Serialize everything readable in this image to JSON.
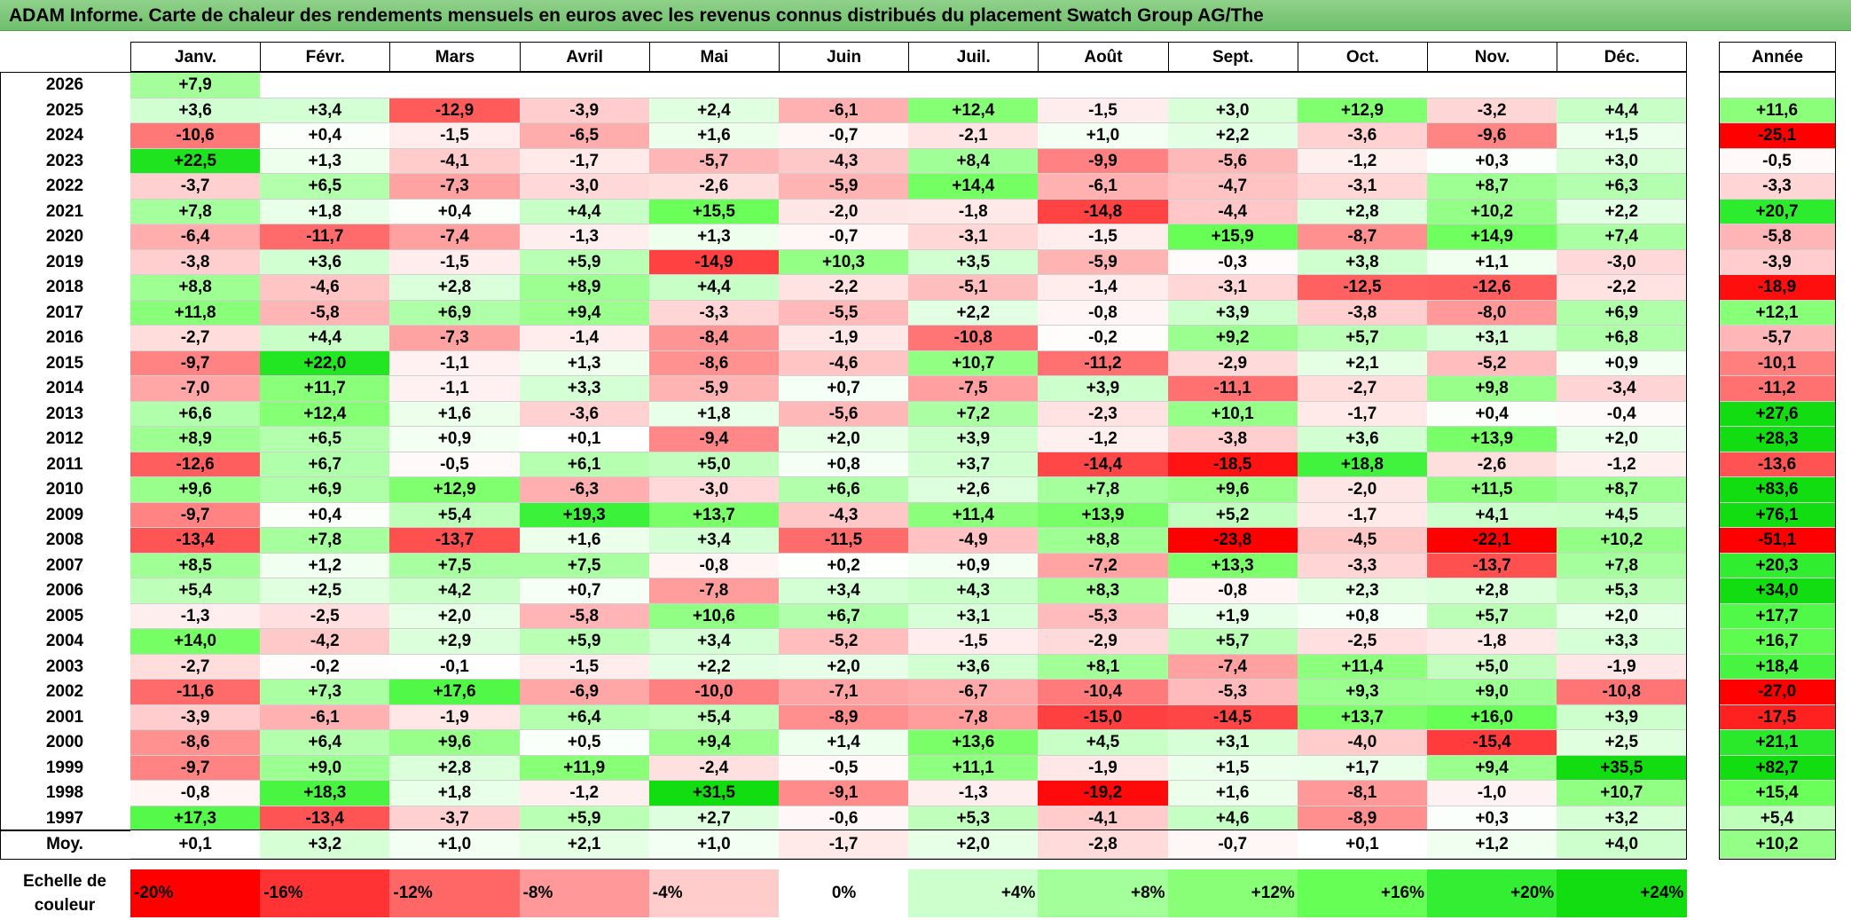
{
  "title": "ADAM Informe. Carte de chaleur des rendements mensuels en euros avec les revenus connus distribués du placement Swatch Group AG/The",
  "chart_data": {
    "type": "heatmap",
    "months": [
      "Janv.",
      "Févr.",
      "Mars",
      "Avril",
      "Mai",
      "Juin",
      "Juil.",
      "Août",
      "Sept.",
      "Oct.",
      "Nov.",
      "Déc."
    ],
    "year_header": "Année",
    "rows": [
      {
        "year": "2026",
        "months": [
          "+7,9",
          "",
          "",
          "",
          "",
          "",
          "",
          "",
          "",
          "",
          "",
          ""
        ],
        "annual": ""
      },
      {
        "year": "2025",
        "months": [
          "+3,6",
          "+3,4",
          "-12,9",
          "-3,9",
          "+2,4",
          "-6,1",
          "+12,4",
          "-1,5",
          "+3,0",
          "+12,9",
          "-3,2",
          "+4,4"
        ],
        "annual": "+11,6"
      },
      {
        "year": "2024",
        "months": [
          "-10,6",
          "+0,4",
          "-1,5",
          "-6,5",
          "+1,6",
          "-0,7",
          "-2,1",
          "+1,0",
          "+2,2",
          "-3,6",
          "-9,6",
          "+1,5"
        ],
        "annual": "-25,1"
      },
      {
        "year": "2023",
        "months": [
          "+22,5",
          "+1,3",
          "-4,1",
          "-1,7",
          "-5,7",
          "-4,3",
          "+8,4",
          "-9,9",
          "-5,6",
          "-1,2",
          "+0,3",
          "+3,0"
        ],
        "annual": "-0,5"
      },
      {
        "year": "2022",
        "months": [
          "-3,7",
          "+6,5",
          "-7,3",
          "-3,0",
          "-2,6",
          "-5,9",
          "+14,4",
          "-6,1",
          "-4,7",
          "-3,1",
          "+8,7",
          "+6,3"
        ],
        "annual": "-3,3"
      },
      {
        "year": "2021",
        "months": [
          "+7,8",
          "+1,8",
          "+0,4",
          "+4,4",
          "+15,5",
          "-2,0",
          "-1,8",
          "-14,8",
          "-4,4",
          "+2,8",
          "+10,2",
          "+2,2"
        ],
        "annual": "+20,7"
      },
      {
        "year": "2020",
        "months": [
          "-6,4",
          "-11,7",
          "-7,4",
          "-1,3",
          "+1,3",
          "-0,7",
          "-3,1",
          "-1,5",
          "+15,9",
          "-8,7",
          "+14,9",
          "+7,4"
        ],
        "annual": "-5,8"
      },
      {
        "year": "2019",
        "months": [
          "-3,8",
          "+3,6",
          "-1,5",
          "+5,9",
          "-14,9",
          "+10,3",
          "+3,5",
          "-5,9",
          "-0,3",
          "+3,8",
          "+1,1",
          "-3,0"
        ],
        "annual": "-3,9"
      },
      {
        "year": "2018",
        "months": [
          "+8,8",
          "-4,6",
          "+2,8",
          "+8,9",
          "+4,4",
          "-2,2",
          "-5,1",
          "-1,4",
          "-3,1",
          "-12,5",
          "-12,6",
          "-2,2"
        ],
        "annual": "-18,9"
      },
      {
        "year": "2017",
        "months": [
          "+11,8",
          "-5,8",
          "+6,9",
          "+9,4",
          "-3,3",
          "-5,5",
          "+2,2",
          "-0,8",
          "+3,9",
          "-3,8",
          "-8,0",
          "+6,9"
        ],
        "annual": "+12,1"
      },
      {
        "year": "2016",
        "months": [
          "-2,7",
          "+4,4",
          "-7,3",
          "-1,4",
          "-8,4",
          "-1,9",
          "-10,8",
          "-0,2",
          "+9,2",
          "+5,7",
          "+3,1",
          "+6,8"
        ],
        "annual": "-5,7"
      },
      {
        "year": "2015",
        "months": [
          "-9,7",
          "+22,0",
          "-1,1",
          "+1,3",
          "-8,6",
          "-4,6",
          "+10,7",
          "-11,2",
          "-2,9",
          "+2,1",
          "-5,2",
          "+0,9"
        ],
        "annual": "-10,1"
      },
      {
        "year": "2014",
        "months": [
          "-7,0",
          "+11,7",
          "-1,1",
          "+3,3",
          "-5,9",
          "+0,7",
          "-7,5",
          "+3,9",
          "-11,1",
          "-2,7",
          "+9,8",
          "-3,4"
        ],
        "annual": "-11,2"
      },
      {
        "year": "2013",
        "months": [
          "+6,6",
          "+12,4",
          "+1,6",
          "-3,6",
          "+1,8",
          "-5,6",
          "+7,2",
          "-2,3",
          "+10,1",
          "-1,7",
          "+0,4",
          "-0,4"
        ],
        "annual": "+27,6"
      },
      {
        "year": "2012",
        "months": [
          "+8,9",
          "+6,5",
          "+0,9",
          "+0,1",
          "-9,4",
          "+2,0",
          "+3,9",
          "-1,2",
          "-3,8",
          "+3,6",
          "+13,9",
          "+2,0"
        ],
        "annual": "+28,3"
      },
      {
        "year": "2011",
        "months": [
          "-12,6",
          "+6,7",
          "-0,5",
          "+6,1",
          "+5,0",
          "+0,8",
          "+3,7",
          "-14,4",
          "-18,5",
          "+18,8",
          "-2,6",
          "-1,2"
        ],
        "annual": "-13,6"
      },
      {
        "year": "2010",
        "months": [
          "+9,6",
          "+6,9",
          "+12,9",
          "-6,3",
          "-3,0",
          "+6,6",
          "+2,6",
          "+7,8",
          "+9,6",
          "-2,0",
          "+11,5",
          "+8,7"
        ],
        "annual": "+83,6"
      },
      {
        "year": "2009",
        "months": [
          "-9,7",
          "+0,4",
          "+5,4",
          "+19,3",
          "+13,7",
          "-4,3",
          "+11,4",
          "+13,9",
          "+5,2",
          "-1,7",
          "+4,1",
          "+4,5"
        ],
        "annual": "+76,1"
      },
      {
        "year": "2008",
        "months": [
          "-13,4",
          "+7,8",
          "-13,7",
          "+1,6",
          "+3,4",
          "-11,5",
          "-4,9",
          "+8,8",
          "-23,8",
          "-4,5",
          "-22,1",
          "+10,2"
        ],
        "annual": "-51,1"
      },
      {
        "year": "2007",
        "months": [
          "+8,5",
          "+1,2",
          "+7,5",
          "+7,5",
          "-0,8",
          "+0,2",
          "+0,9",
          "-7,2",
          "+13,3",
          "-3,3",
          "-13,7",
          "+7,8"
        ],
        "annual": "+20,3"
      },
      {
        "year": "2006",
        "months": [
          "+5,4",
          "+2,5",
          "+4,2",
          "+0,7",
          "-7,8",
          "+3,4",
          "+4,3",
          "+8,3",
          "-0,8",
          "+2,3",
          "+2,8",
          "+5,3"
        ],
        "annual": "+34,0"
      },
      {
        "year": "2005",
        "months": [
          "-1,3",
          "-2,5",
          "+2,0",
          "-5,8",
          "+10,6",
          "+6,7",
          "+3,1",
          "-5,3",
          "+1,9",
          "+0,8",
          "+5,7",
          "+2,0"
        ],
        "annual": "+17,7"
      },
      {
        "year": "2004",
        "months": [
          "+14,0",
          "-4,2",
          "+2,9",
          "+5,9",
          "+3,4",
          "-5,2",
          "-1,5",
          "-2,9",
          "+5,7",
          "-2,5",
          "-1,8",
          "+3,3"
        ],
        "annual": "+16,7"
      },
      {
        "year": "2003",
        "months": [
          "-2,7",
          "-0,2",
          "-0,1",
          "-1,5",
          "+2,2",
          "+2,0",
          "+3,6",
          "+8,1",
          "-7,4",
          "+11,4",
          "+5,0",
          "-1,9"
        ],
        "annual": "+18,4"
      },
      {
        "year": "2002",
        "months": [
          "-11,6",
          "+7,3",
          "+17,6",
          "-6,9",
          "-10,0",
          "-7,1",
          "-6,7",
          "-10,4",
          "-5,3",
          "+9,3",
          "+9,0",
          "-10,8"
        ],
        "annual": "-27,0"
      },
      {
        "year": "2001",
        "months": [
          "-3,9",
          "-6,1",
          "-1,9",
          "+6,4",
          "+5,4",
          "-8,9",
          "-7,8",
          "-15,0",
          "-14,5",
          "+13,7",
          "+16,0",
          "+3,9"
        ],
        "annual": "-17,5"
      },
      {
        "year": "2000",
        "months": [
          "-8,6",
          "+6,4",
          "+9,6",
          "+0,5",
          "+9,4",
          "+1,4",
          "+13,6",
          "+4,5",
          "+3,1",
          "-4,0",
          "-15,4",
          "+2,5"
        ],
        "annual": "+21,1"
      },
      {
        "year": "1999",
        "months": [
          "-9,7",
          "+9,0",
          "+2,8",
          "+11,9",
          "-2,4",
          "-0,5",
          "+11,1",
          "-1,9",
          "+1,5",
          "+1,7",
          "+9,4",
          "+35,5"
        ],
        "annual": "+82,7"
      },
      {
        "year": "1998",
        "months": [
          "-0,8",
          "+18,3",
          "+1,8",
          "-1,2",
          "+31,5",
          "-9,1",
          "-1,3",
          "-19,2",
          "+1,6",
          "-8,1",
          "-1,0",
          "+10,7"
        ],
        "annual": "+15,4"
      },
      {
        "year": "1997",
        "months": [
          "+17,3",
          "-13,4",
          "-3,7",
          "+5,9",
          "+2,7",
          "-0,6",
          "+5,3",
          "-4,1",
          "+4,6",
          "-8,9",
          "+0,3",
          "+3,2"
        ],
        "annual": "+5,4"
      }
    ],
    "average": {
      "label": "Moy.",
      "months": [
        "+0,1",
        "+3,2",
        "+1,0",
        "+2,1",
        "+1,0",
        "-1,7",
        "+2,0",
        "-2,8",
        "-0,7",
        "+0,1",
        "+1,2",
        "+4,0"
      ],
      "annual": "+10,2"
    },
    "scale": {
      "label": "Echelle de couleur",
      "steps": [
        {
          "text": "-20%",
          "value": -20,
          "color": "#ff0000"
        },
        {
          "text": "-16%",
          "value": -16,
          "color": "#ff3333"
        },
        {
          "text": "-12%",
          "value": -12,
          "color": "#ff6666"
        },
        {
          "text": "-8%",
          "value": -8,
          "color": "#ff9999"
        },
        {
          "text": "-4%",
          "value": -4,
          "color": "#ffcccc"
        },
        {
          "text": "0%",
          "value": 0,
          "color": "#ffffff"
        },
        {
          "text": "+4%",
          "value": 4,
          "color": "#ccffcc"
        },
        {
          "text": "+8%",
          "value": 8,
          "color": "#a3ff99"
        },
        {
          "text": "+12%",
          "value": 12,
          "color": "#88ff77"
        },
        {
          "text": "+16%",
          "value": 16,
          "color": "#66ff55"
        },
        {
          "text": "+20%",
          "value": 20,
          "color": "#33ee33"
        },
        {
          "text": "+24%",
          "value": 24,
          "color": "#11dd11"
        }
      ]
    }
  }
}
